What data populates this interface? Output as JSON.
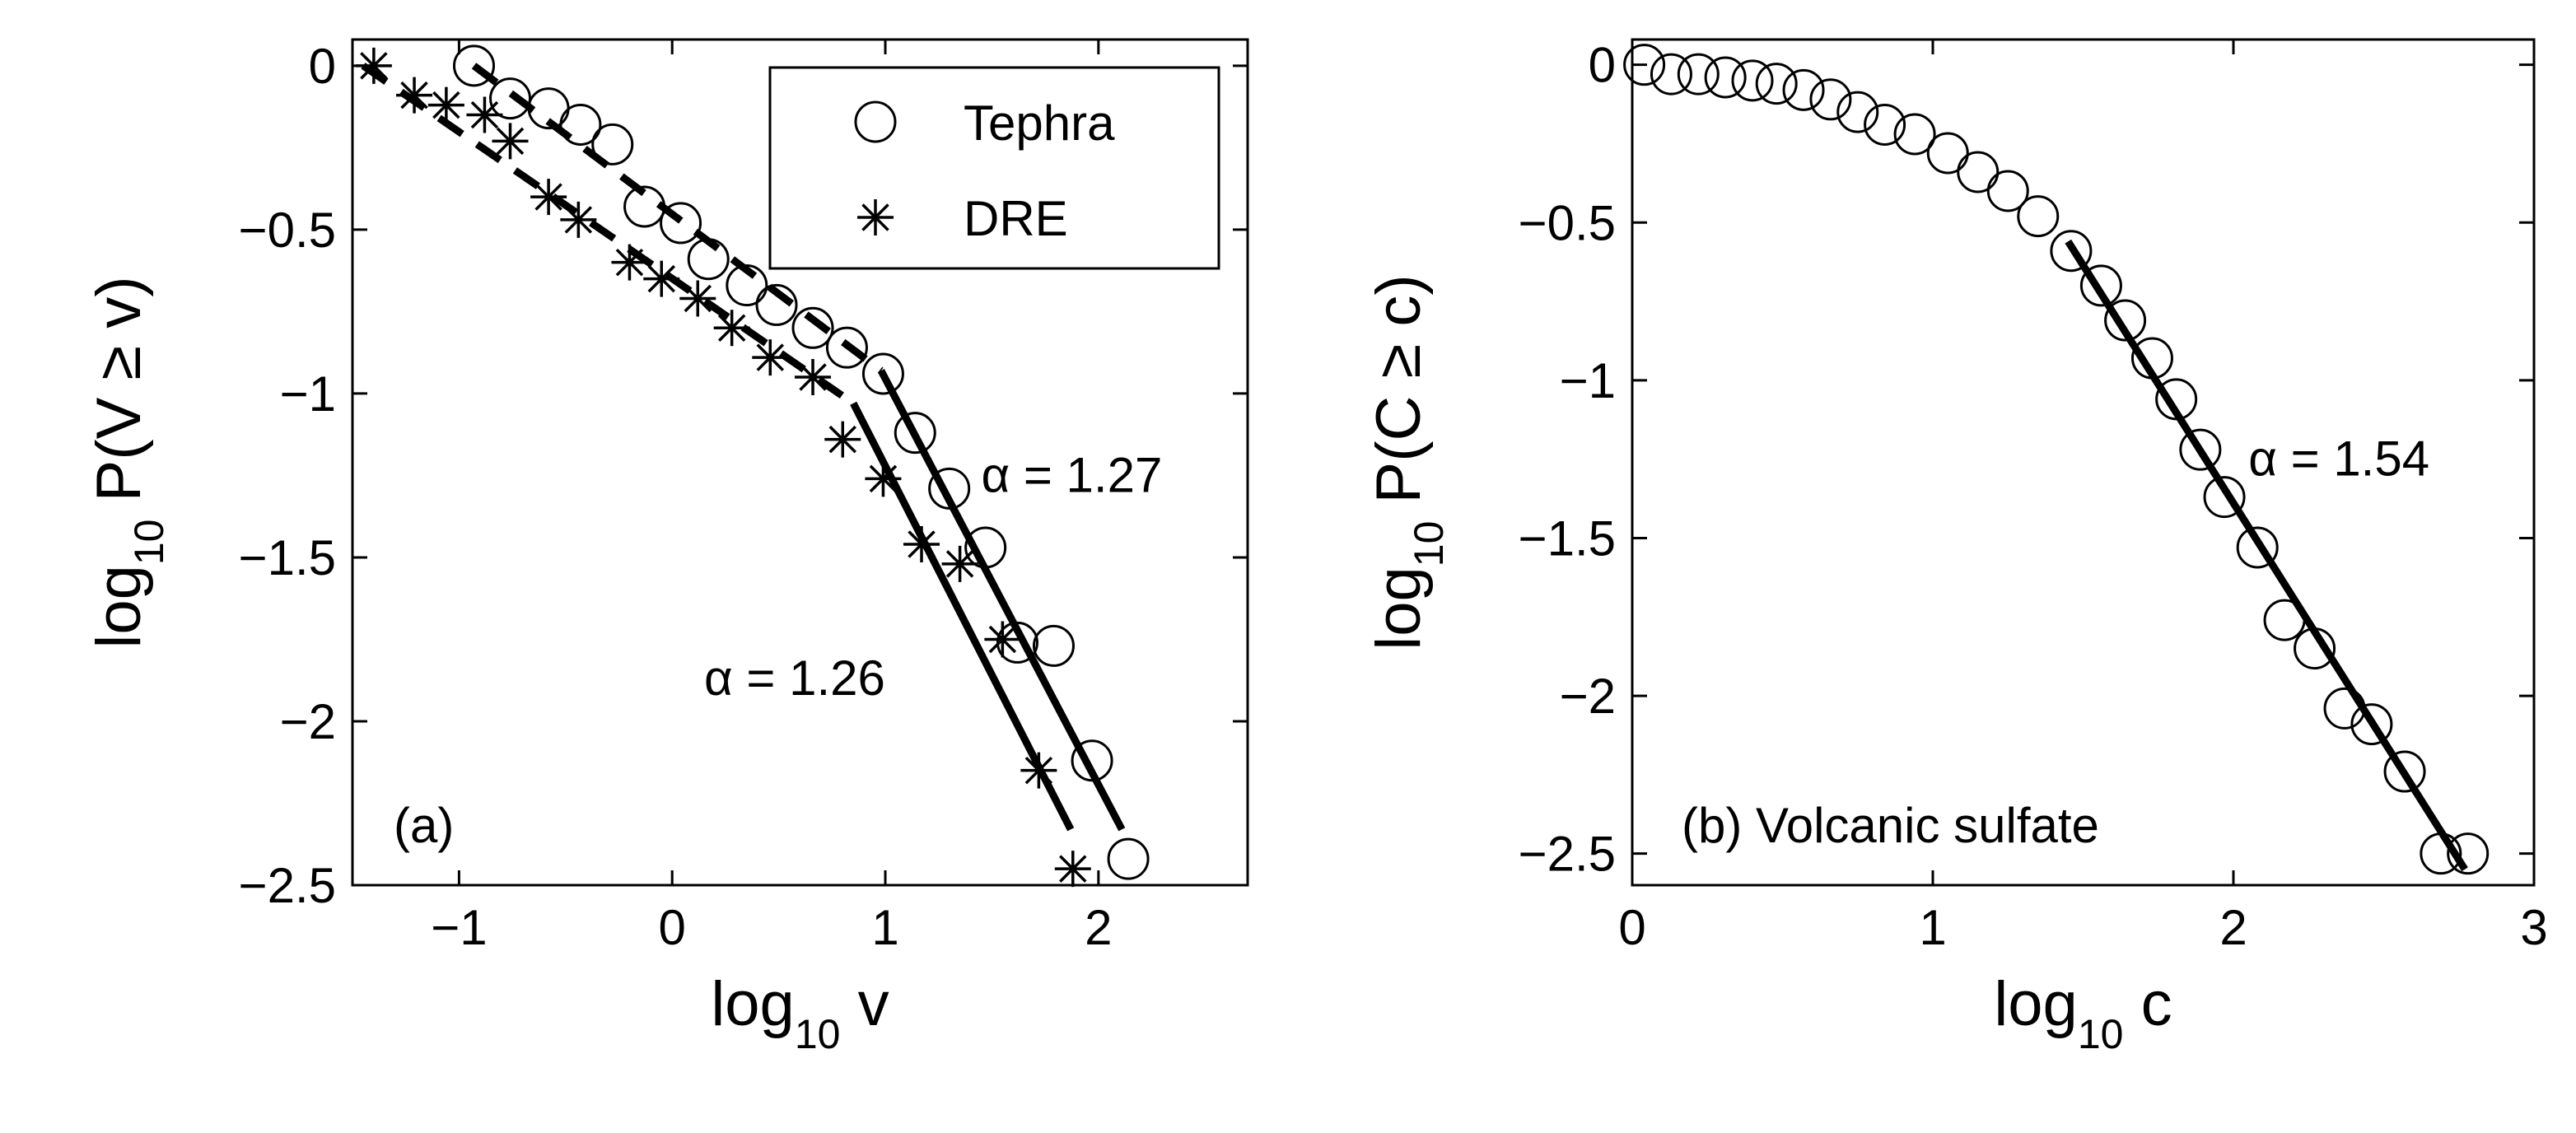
{
  "chart_data": [
    {
      "type": "scatter",
      "panel_label": "(a)",
      "xlabel": {
        "base": "log",
        "sub": "10",
        "rest": " v"
      },
      "ylabel": {
        "base": "log",
        "sub": "10",
        "rest": " P(V ≥ v)"
      },
      "xlim": [
        -1.5,
        2.7
      ],
      "ylim": [
        -2.5,
        0.08
      ],
      "xticks": [
        -1,
        0,
        1,
        2
      ],
      "yticks": [
        0,
        -0.5,
        -1,
        -1.5,
        -2,
        -2.5
      ],
      "legend_position": "top-right",
      "series": [
        {
          "name": "Tephra",
          "marker": "circle",
          "points": [
            [
              -0.93,
              0.0
            ],
            [
              -0.76,
              -0.1
            ],
            [
              -0.58,
              -0.13
            ],
            [
              -0.43,
              -0.18
            ],
            [
              -0.28,
              -0.24
            ],
            [
              -0.13,
              -0.43
            ],
            [
              0.04,
              -0.48
            ],
            [
              0.17,
              -0.59
            ],
            [
              0.35,
              -0.67
            ],
            [
              0.49,
              -0.73
            ],
            [
              0.66,
              -0.8
            ],
            [
              0.82,
              -0.86
            ],
            [
              0.99,
              -0.94
            ],
            [
              1.14,
              -1.12
            ],
            [
              1.3,
              -1.29
            ],
            [
              1.47,
              -1.47
            ],
            [
              1.62,
              -1.76
            ],
            [
              1.79,
              -1.77
            ],
            [
              1.97,
              -2.12
            ],
            [
              2.14,
              -2.42
            ]
          ]
        },
        {
          "name": "DRE",
          "marker": "asterisk",
          "points": [
            [
              -1.4,
              0.0
            ],
            [
              -1.21,
              -0.09
            ],
            [
              -1.06,
              -0.12
            ],
            [
              -0.88,
              -0.15
            ],
            [
              -0.76,
              -0.23
            ],
            [
              -0.58,
              -0.4
            ],
            [
              -0.44,
              -0.47
            ],
            [
              -0.2,
              -0.6
            ],
            [
              -0.05,
              -0.65
            ],
            [
              0.12,
              -0.71
            ],
            [
              0.28,
              -0.8
            ],
            [
              0.46,
              -0.89
            ],
            [
              0.66,
              -0.95
            ],
            [
              0.8,
              -1.14
            ],
            [
              0.99,
              -1.26
            ],
            [
              1.17,
              -1.46
            ],
            [
              1.35,
              -1.52
            ],
            [
              1.55,
              -1.75
            ],
            [
              1.72,
              -2.15
            ],
            [
              1.88,
              -2.45
            ]
          ]
        }
      ],
      "fits": [
        {
          "style": "dashed",
          "from": [
            -0.93,
            0.0
          ],
          "to": [
            0.98,
            -0.93
          ]
        },
        {
          "style": "solid",
          "from": [
            0.98,
            -0.93
          ],
          "to": [
            2.11,
            -2.33
          ],
          "label": "α = 1.27",
          "label_at": [
            1.45,
            -1.25
          ]
        },
        {
          "style": "dashed",
          "from": [
            -1.45,
            0.0
          ],
          "to": [
            0.85,
            -1.03
          ]
        },
        {
          "style": "solid",
          "from": [
            0.85,
            -1.03
          ],
          "to": [
            1.87,
            -2.33
          ],
          "label": "α = 1.26",
          "label_at": [
            0.15,
            -1.87
          ]
        }
      ]
    },
    {
      "type": "scatter",
      "panel_label": "(b) Volcanic sulfate",
      "xlabel": {
        "base": "log",
        "sub": "10",
        "rest": " c"
      },
      "ylabel": {
        "base": "log",
        "sub": "10",
        "rest": " P(C ≥ c)"
      },
      "xlim": [
        0,
        3
      ],
      "ylim": [
        -2.6,
        0.08
      ],
      "xticks": [
        0,
        1,
        2,
        3
      ],
      "yticks": [
        0,
        -0.5,
        -1,
        -1.5,
        -2,
        -2.5
      ],
      "series": [
        {
          "name": "",
          "marker": "circle",
          "points": [
            [
              0.04,
              0.0
            ],
            [
              0.13,
              -0.03
            ],
            [
              0.22,
              -0.03
            ],
            [
              0.31,
              -0.04
            ],
            [
              0.4,
              -0.05
            ],
            [
              0.48,
              -0.06
            ],
            [
              0.57,
              -0.08
            ],
            [
              0.66,
              -0.11
            ],
            [
              0.75,
              -0.15
            ],
            [
              0.84,
              -0.19
            ],
            [
              0.94,
              -0.22
            ],
            [
              1.05,
              -0.28
            ],
            [
              1.15,
              -0.34
            ],
            [
              1.25,
              -0.4
            ],
            [
              1.35,
              -0.48
            ],
            [
              1.46,
              -0.59
            ],
            [
              1.56,
              -0.7
            ],
            [
              1.64,
              -0.81
            ],
            [
              1.73,
              -0.93
            ],
            [
              1.81,
              -1.06
            ],
            [
              1.89,
              -1.22
            ],
            [
              1.97,
              -1.37
            ],
            [
              2.08,
              -1.53
            ],
            [
              2.17,
              -1.76
            ],
            [
              2.27,
              -1.85
            ],
            [
              2.37,
              -2.04
            ],
            [
              2.46,
              -2.09
            ],
            [
              2.57,
              -2.24
            ],
            [
              2.69,
              -2.5
            ],
            [
              2.78,
              -2.5
            ]
          ]
        }
      ],
      "fits": [
        {
          "style": "solid",
          "from": [
            1.45,
            -0.56
          ],
          "to": [
            2.77,
            -2.55
          ],
          "label": "α = 1.54",
          "label_at": [
            2.05,
            -1.25
          ]
        }
      ]
    }
  ]
}
